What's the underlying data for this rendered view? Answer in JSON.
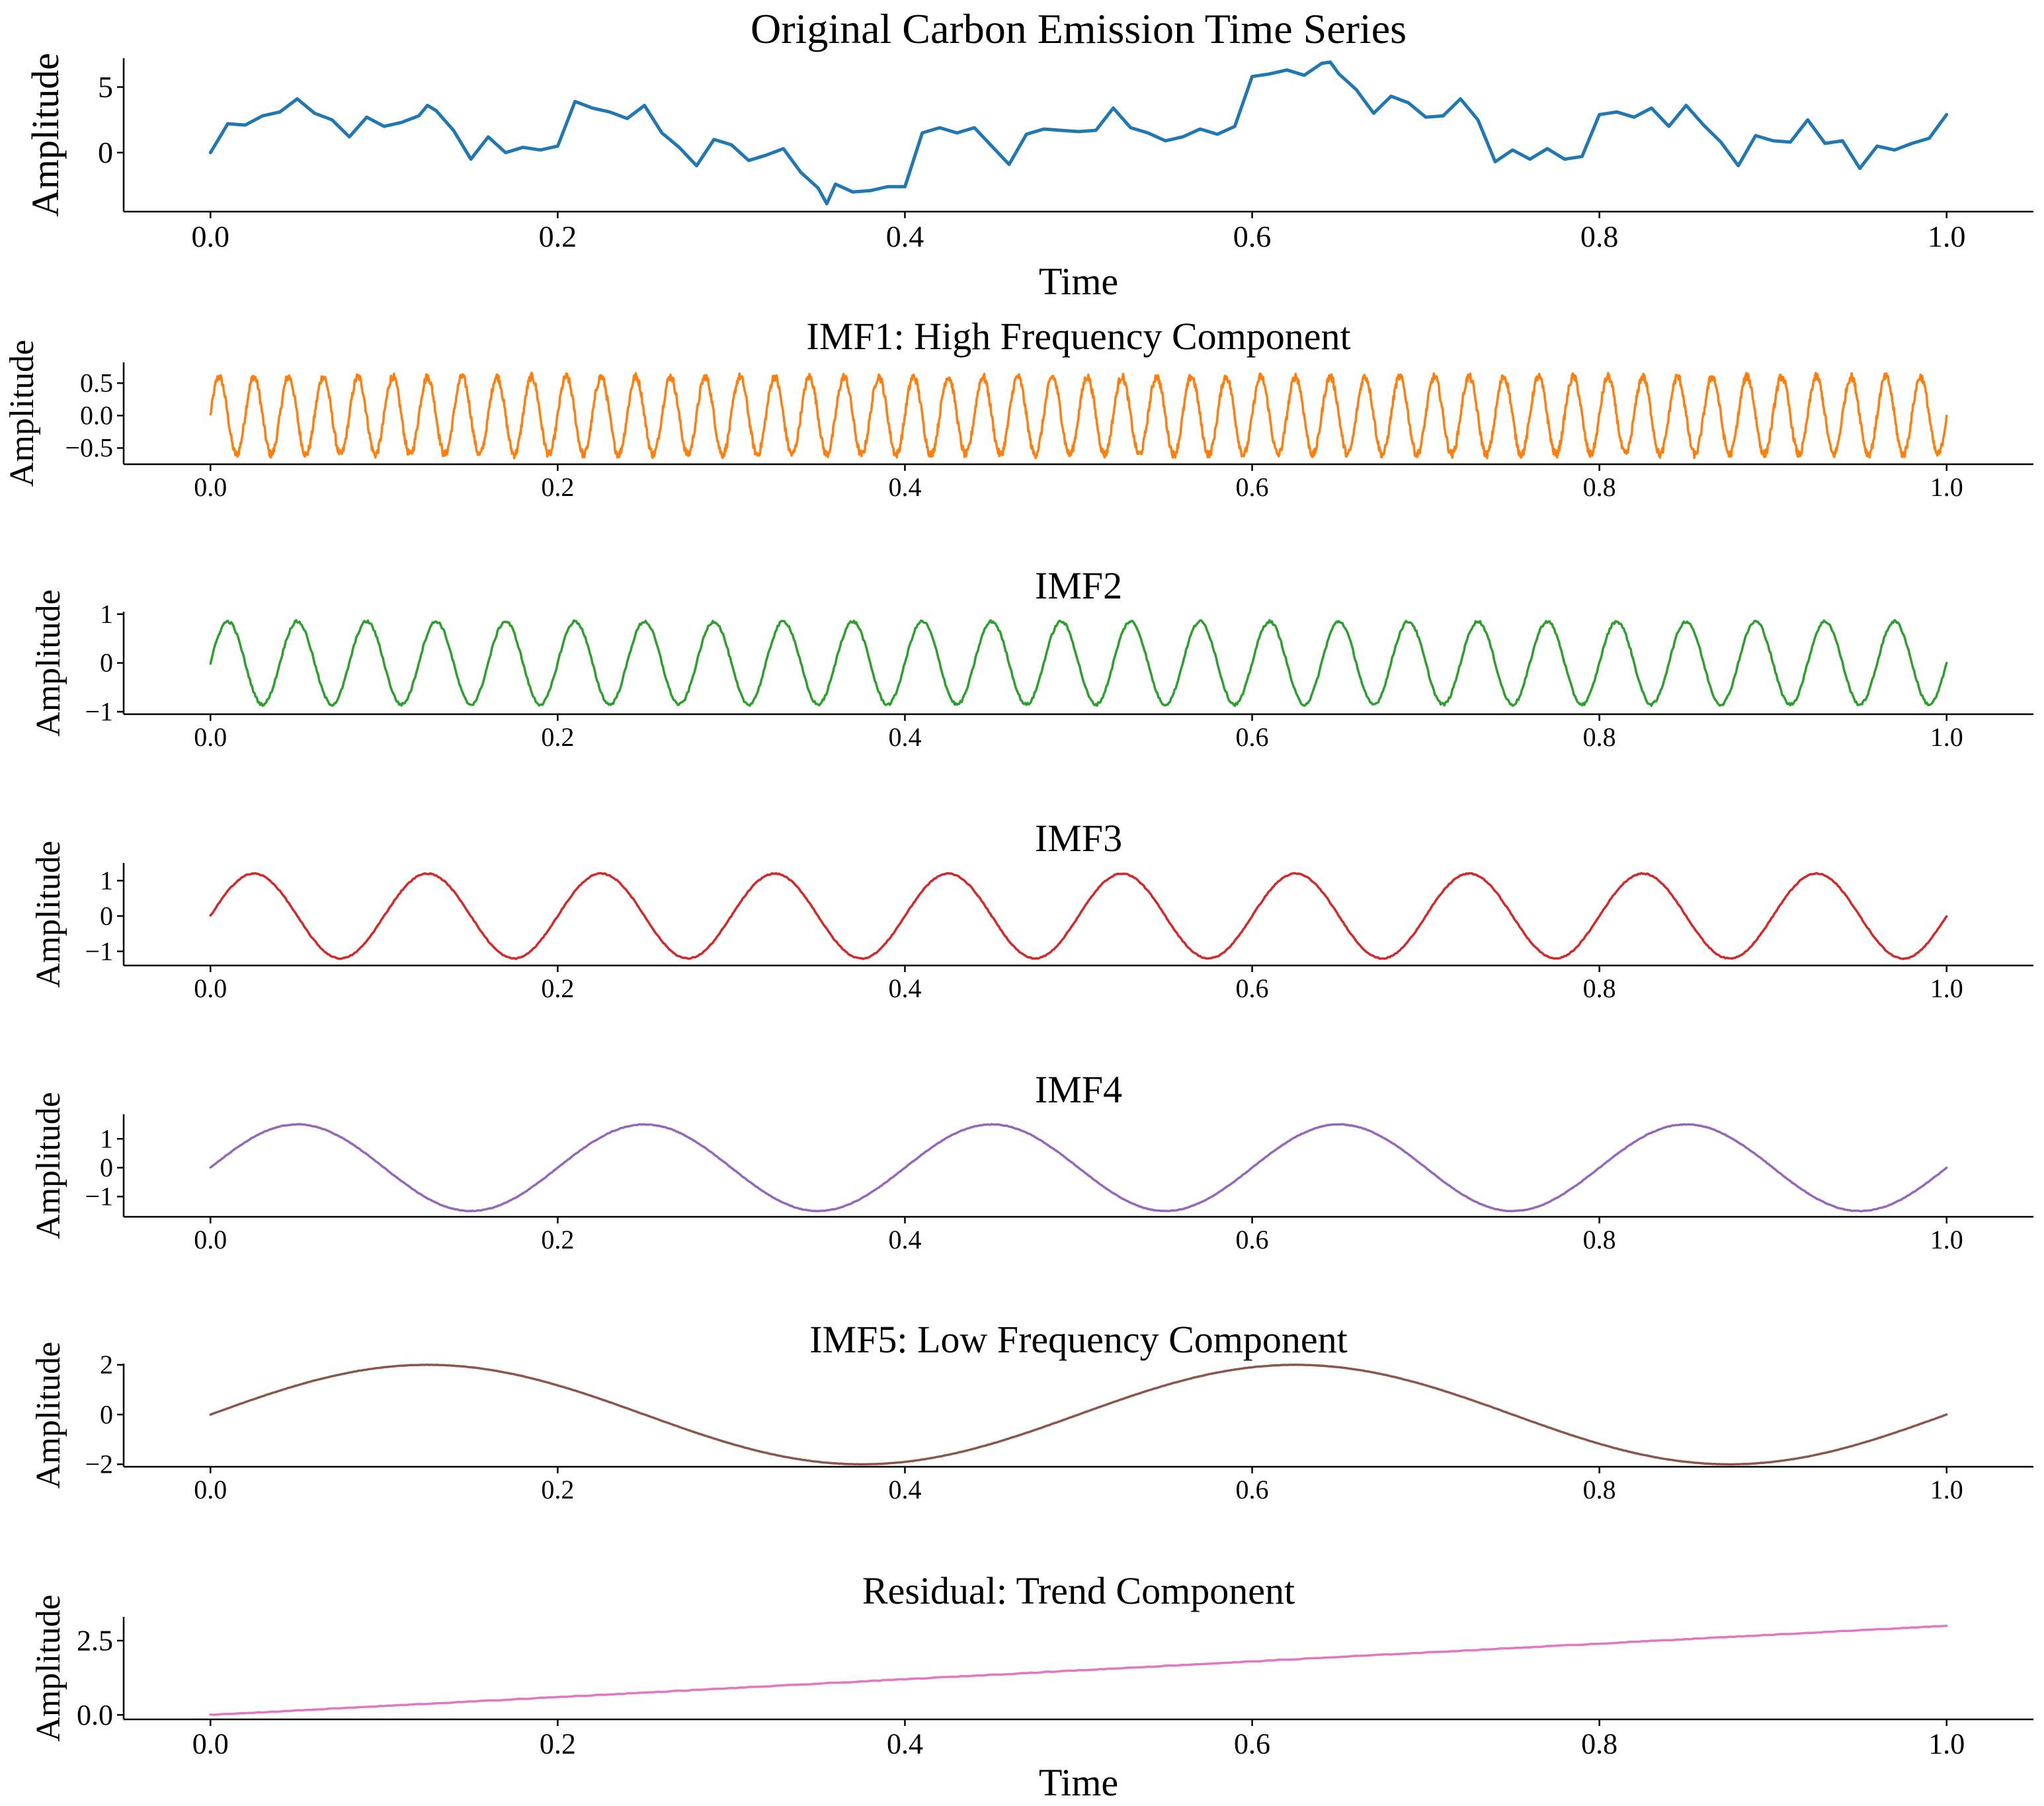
{
  "chart_data": [
    {
      "type": "line",
      "title": "Original Carbon Emission Time Series",
      "xlabel": "Time",
      "ylabel": "Amplitude",
      "xlim": [
        -0.05,
        1.05
      ],
      "ylim": [
        -4.5,
        7.2
      ],
      "xticks": [
        "0.0",
        "0.2",
        "0.4",
        "0.6",
        "0.8",
        "1.0"
      ],
      "yticks": [
        {
          "value": 5,
          "label": "5"
        },
        {
          "value": 0,
          "label": "0"
        }
      ],
      "color": "#1f77b4",
      "series": [
        {
          "name": "Original",
          "x": [
            0.0,
            0.01,
            0.02,
            0.03,
            0.04,
            0.05,
            0.06,
            0.07,
            0.08,
            0.09,
            0.1,
            0.11,
            0.12,
            0.125,
            0.13,
            0.14,
            0.15,
            0.16,
            0.17,
            0.18,
            0.19,
            0.2,
            0.21,
            0.22,
            0.23,
            0.24,
            0.25,
            0.26,
            0.27,
            0.28,
            0.29,
            0.3,
            0.31,
            0.32,
            0.33,
            0.34,
            0.35,
            0.355,
            0.36,
            0.37,
            0.38,
            0.39,
            0.4,
            0.41,
            0.42,
            0.43,
            0.44,
            0.45,
            0.46,
            0.47,
            0.48,
            0.49,
            0.5,
            0.51,
            0.52,
            0.53,
            0.54,
            0.55,
            0.56,
            0.57,
            0.58,
            0.59,
            0.6,
            0.61,
            0.62,
            0.63,
            0.64,
            0.645,
            0.65,
            0.66,
            0.67,
            0.68,
            0.69,
            0.7,
            0.71,
            0.72,
            0.73,
            0.74,
            0.75,
            0.76,
            0.77,
            0.78,
            0.79,
            0.8,
            0.81,
            0.82,
            0.83,
            0.84,
            0.85,
            0.86,
            0.87,
            0.88,
            0.89,
            0.9,
            0.91,
            0.92,
            0.93,
            0.94,
            0.95,
            0.96,
            0.97,
            0.98,
            0.99,
            1.0
          ],
          "values": [
            0.0,
            2.2,
            2.1,
            2.8,
            3.1,
            4.1,
            3.0,
            2.5,
            1.2,
            2.7,
            2.0,
            2.3,
            2.8,
            3.6,
            3.2,
            1.7,
            -0.5,
            1.2,
            0.0,
            0.4,
            0.2,
            0.5,
            3.9,
            3.4,
            3.1,
            2.6,
            3.6,
            1.5,
            0.4,
            -1.0,
            1.0,
            0.6,
            -0.6,
            -0.2,
            0.3,
            -1.5,
            -2.7,
            -3.9,
            -2.4,
            -3.0,
            -2.9,
            -2.6,
            -2.6,
            1.5,
            1.9,
            1.5,
            1.9,
            0.5,
            -0.9,
            1.4,
            1.8,
            1.7,
            1.6,
            1.7,
            3.4,
            1.9,
            1.5,
            0.9,
            1.2,
            1.8,
            1.4,
            2.0,
            5.8,
            6.0,
            6.3,
            5.9,
            6.8,
            6.9,
            6.0,
            4.8,
            3.0,
            4.3,
            3.8,
            2.7,
            2.8,
            4.1,
            2.5,
            -0.7,
            0.2,
            -0.5,
            0.3,
            -0.5,
            -0.3,
            2.9,
            3.1,
            2.7,
            3.4,
            2.0,
            3.6,
            2.1,
            0.8,
            -1.0,
            1.3,
            0.9,
            0.8,
            2.5,
            0.7,
            0.9,
            -1.2,
            0.5,
            0.2,
            0.7,
            1.1,
            2.9
          ]
        }
      ]
    },
    {
      "type": "line",
      "title": "IMF1: High Frequency Component",
      "xlabel": "",
      "ylabel": "Amplitude",
      "xlim": [
        -0.05,
        1.05
      ],
      "ylim": [
        -0.75,
        0.82
      ],
      "xticks": [
        "0.0",
        "0.2",
        "0.4",
        "0.6",
        "0.8",
        "1.0"
      ],
      "yticks": [
        {
          "value": 0.5,
          "label": "0.5"
        },
        {
          "value": 0,
          "label": "0.0"
        },
        {
          "value": -0.5,
          "label": "−0.5"
        }
      ],
      "color": "#ff7f0e",
      "series": [
        {
          "name": "IMF1",
          "function": "sine",
          "amplitude": 0.6,
          "cycles": 50,
          "offset": 0
        }
      ]
    },
    {
      "type": "line",
      "title": "IMF2",
      "xlabel": "",
      "ylabel": "Amplitude",
      "xlim": [
        -0.05,
        1.05
      ],
      "ylim": [
        -1.05,
        1.05
      ],
      "xticks": [
        "0.0",
        "0.2",
        "0.4",
        "0.6",
        "0.8",
        "1.0"
      ],
      "yticks": [
        {
          "value": 1,
          "label": "1"
        },
        {
          "value": 0,
          "label": "0"
        },
        {
          "value": -1,
          "label": "−1"
        }
      ],
      "color": "#2ca02c",
      "series": [
        {
          "name": "IMF2",
          "function": "sine",
          "amplitude": 0.85,
          "cycles": 25,
          "offset": 0
        }
      ]
    },
    {
      "type": "line",
      "title": "IMF3",
      "xlabel": "",
      "ylabel": "Amplitude",
      "xlim": [
        -0.05,
        1.05
      ],
      "ylim": [
        -1.4,
        1.5
      ],
      "xticks": [
        "0.0",
        "0.2",
        "0.4",
        "0.6",
        "0.8",
        "1.0"
      ],
      "yticks": [
        {
          "value": 1,
          "label": "1"
        },
        {
          "value": 0,
          "label": "0"
        },
        {
          "value": -1,
          "label": "−1"
        }
      ],
      "color": "#d62728",
      "series": [
        {
          "name": "IMF3",
          "function": "sine",
          "amplitude": 1.2,
          "cycles": 10,
          "offset": 0
        }
      ]
    },
    {
      "type": "line",
      "title": "IMF4",
      "xlabel": "",
      "ylabel": "Amplitude",
      "xlim": [
        -0.05,
        1.05
      ],
      "ylim": [
        -1.7,
        1.85
      ],
      "xticks": [
        "0.0",
        "0.2",
        "0.4",
        "0.6",
        "0.8",
        "1.0"
      ],
      "yticks": [
        {
          "value": 1,
          "label": "1"
        },
        {
          "value": 0,
          "label": "0"
        },
        {
          "value": -1,
          "label": "−1"
        }
      ],
      "color": "#9467bd",
      "series": [
        {
          "name": "IMF4",
          "function": "sine",
          "amplitude": 1.5,
          "cycles": 5,
          "offset": 0
        }
      ]
    },
    {
      "type": "line",
      "title": "IMF5: Low Frequency Component",
      "xlabel": "",
      "ylabel": "Amplitude",
      "xlim": [
        -0.05,
        1.05
      ],
      "ylim": [
        -2.1,
        2.05
      ],
      "xticks": [
        "0.0",
        "0.2",
        "0.4",
        "0.6",
        "0.8",
        "1.0"
      ],
      "yticks": [
        {
          "value": 2,
          "label": "2"
        },
        {
          "value": 0,
          "label": "0"
        },
        {
          "value": -2,
          "label": "−2"
        }
      ],
      "color": "#8c564b",
      "series": [
        {
          "name": "IMF5",
          "function": "sine",
          "amplitude": 2.0,
          "cycles": 2,
          "offset": 0
        }
      ]
    },
    {
      "type": "line",
      "title": "Residual: Trend Component",
      "xlabel": "Time",
      "ylabel": "Amplitude",
      "xlim": [
        -0.05,
        1.05
      ],
      "ylim": [
        -0.15,
        3.3
      ],
      "xticks": [
        "0.0",
        "0.2",
        "0.4",
        "0.6",
        "0.8",
        "1.0"
      ],
      "yticks": [
        {
          "value": 2.5,
          "label": "2.5"
        },
        {
          "value": 0,
          "label": "0.0"
        }
      ],
      "color": "#e377c2",
      "series": [
        {
          "name": "Residual",
          "function": "linear",
          "start": 0.0,
          "end": 3.0
        }
      ]
    }
  ]
}
